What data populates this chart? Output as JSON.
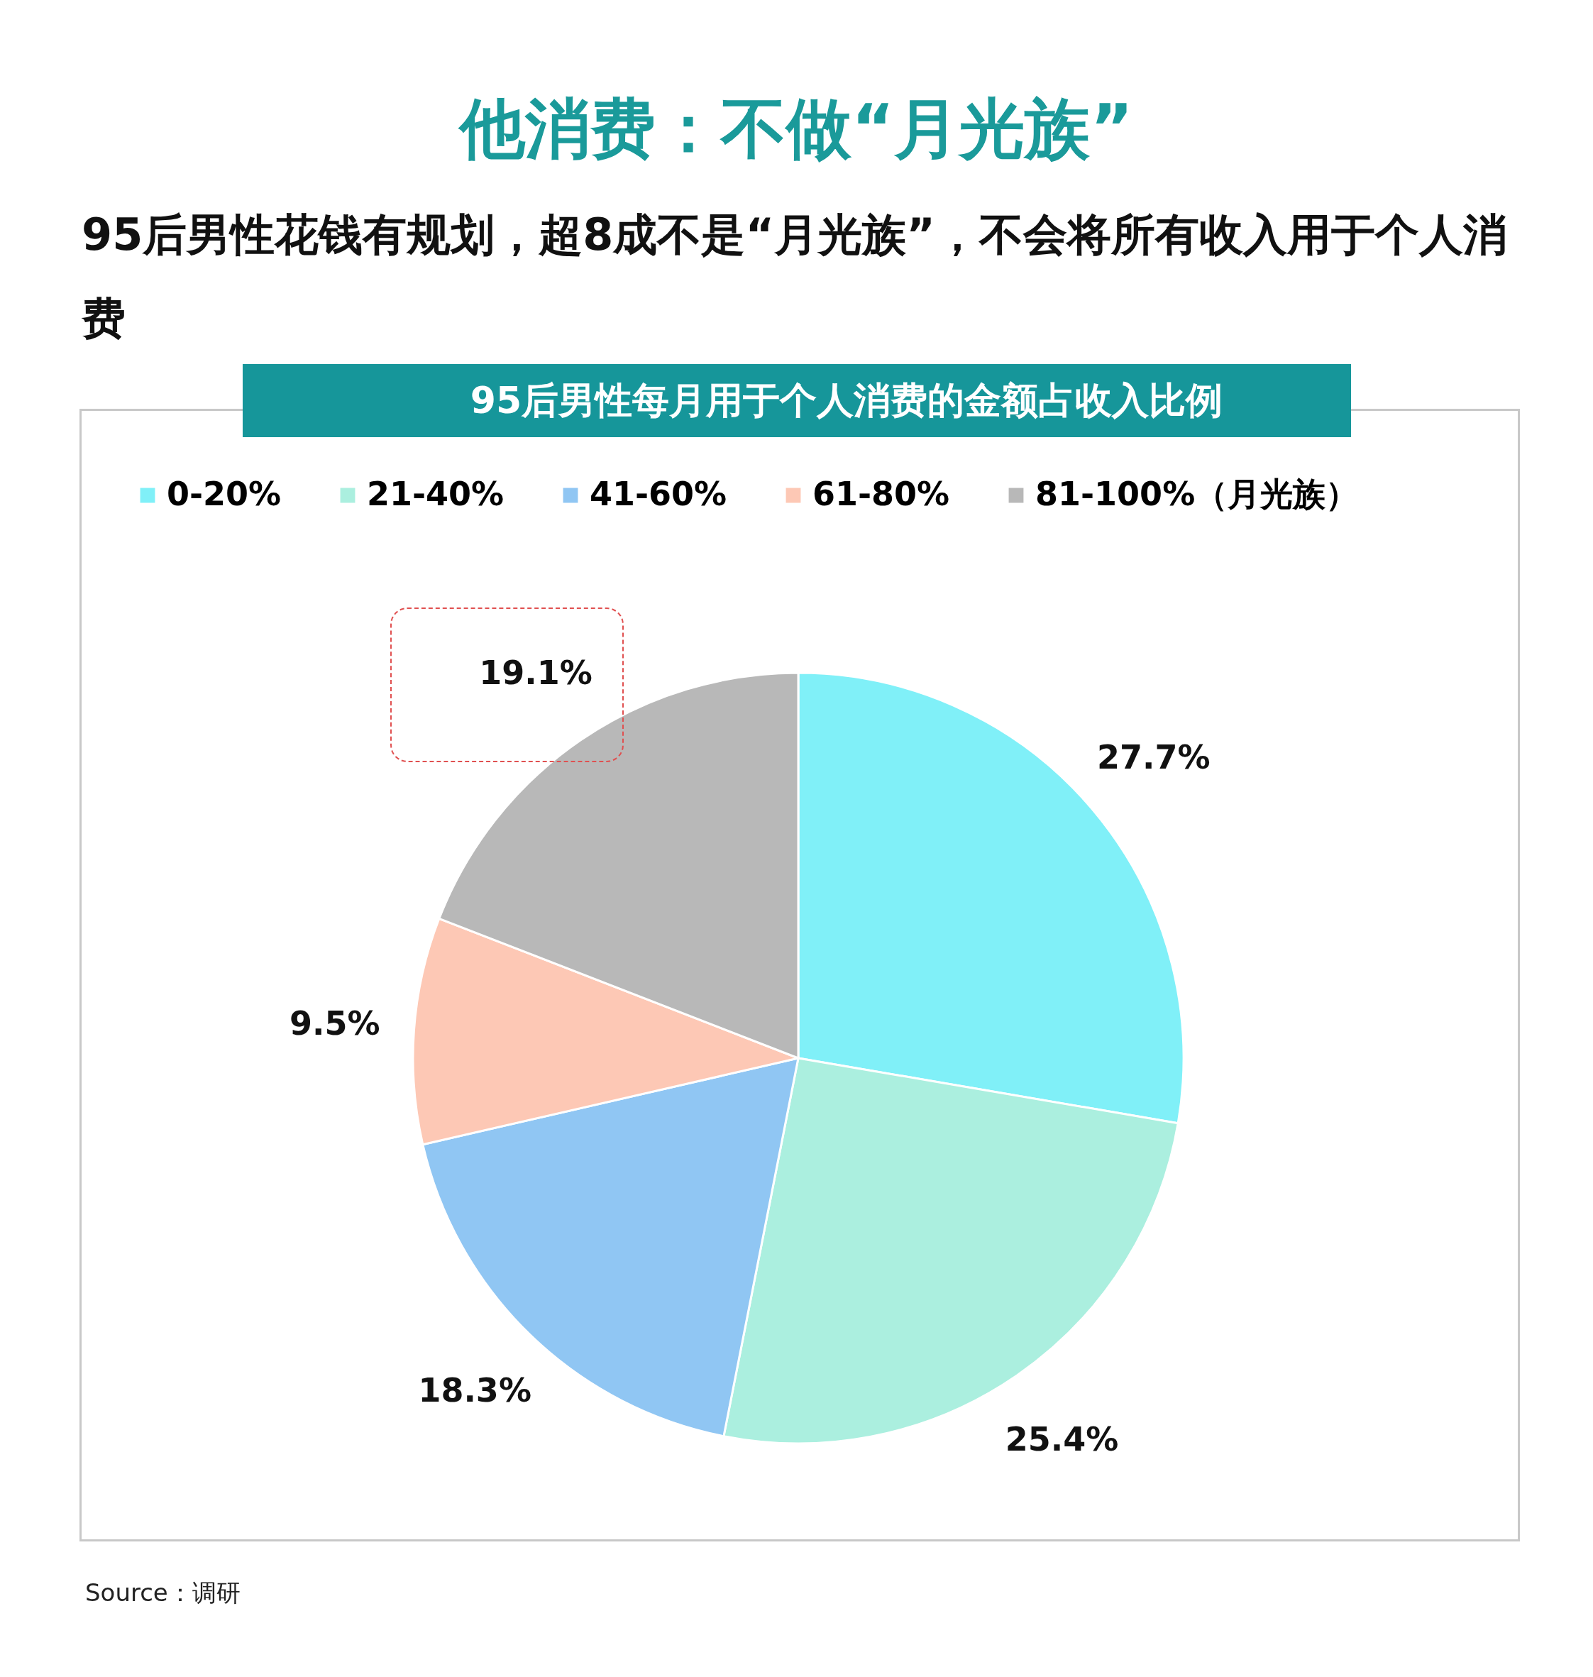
{
  "chart_data": {
    "type": "pie",
    "title": "他消费：不做“月光族”",
    "subtitle": "95后男性花钱有规划，超8成不是“月光族”，不会将所有收入用于个人消费",
    "annotations": [
      "95后男性每月用于个人消费的金额占收入比例",
      "Source：调研"
    ],
    "categories": [
      "0-20%",
      "21-40%",
      "41-60%",
      "61-80%",
      "81-100%（月光族）"
    ],
    "values": [
      27.7,
      25.4,
      18.3,
      9.5,
      19.1
    ],
    "value_labels": [
      "27.7%",
      "25.4%",
      "18.3%",
      "9.5%",
      "19.1%"
    ],
    "colors": [
      "#80f0f8",
      "#abefdf",
      "#90c6f3",
      "#fdc8b5",
      "#b8b8b8"
    ],
    "legend": "top"
  }
}
